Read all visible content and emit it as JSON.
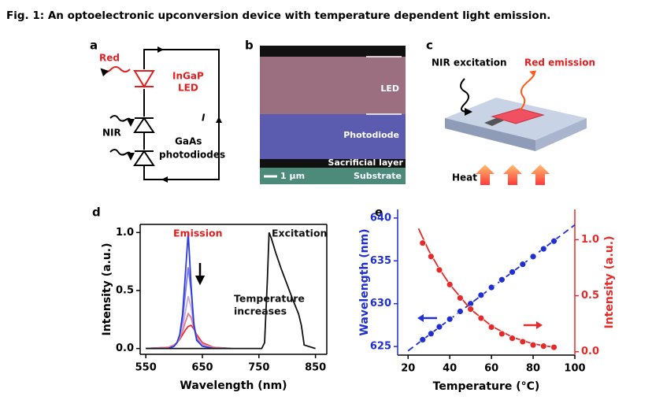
{
  "title": "Fig. 1: An optoelectronic upconversion device with temperature dependent light emission.",
  "panels": {
    "a": {
      "letter": "a",
      "red": "Red",
      "led_material": "InGaP",
      "led": "LED",
      "nir": "NIR",
      "diode_material": "GaAs",
      "diodes": "photodiodes",
      "current": "I"
    },
    "b": {
      "letter": "b",
      "led": "LED",
      "photodiode": "Photodiode",
      "sacrificial": "Sacrificial layer",
      "scale": "1 µm",
      "substrate": "Substrate"
    },
    "c": {
      "letter": "c",
      "nir": "NIR excitation",
      "red": "Red emission",
      "heat": "Heat"
    }
  },
  "chart_data": [
    {
      "type": "line",
      "letter": "d",
      "xlabel": "Wavelength (nm)",
      "ylabel": "Intensity (a.u.)",
      "annotations": [
        "Emission",
        "Excitation",
        "Temperature",
        "increases"
      ],
      "xlim": [
        540,
        870
      ],
      "xticks": [
        550,
        650,
        750,
        850
      ],
      "ylim": [
        -0.05,
        1.07
      ],
      "yticks": [
        {
          "value": 0,
          "label": "0.0"
        },
        {
          "value": 0.5,
          "label": "0.5"
        },
        {
          "value": 1,
          "label": "1.0"
        }
      ],
      "series": [
        {
          "color": "#ee2a2a",
          "x": [
            550,
            590,
            600,
            605,
            610,
            615,
            620,
            625,
            630,
            635,
            640,
            650,
            670,
            700
          ],
          "values": [
            0,
            0.01,
            0.03,
            0.05,
            0.08,
            0.12,
            0.16,
            0.19,
            0.2,
            0.17,
            0.12,
            0.05,
            0.01,
            0
          ]
        },
        {
          "color": "#e87a8a",
          "x": [
            550,
            590,
            600,
            605,
            610,
            615,
            620,
            625,
            630,
            635,
            640,
            650,
            670,
            700
          ],
          "values": [
            0,
            0.01,
            0.03,
            0.05,
            0.09,
            0.15,
            0.23,
            0.3,
            0.27,
            0.18,
            0.1,
            0.04,
            0.01,
            0
          ]
        },
        {
          "color": "#c9a8d8",
          "x": [
            550,
            590,
            600,
            605,
            610,
            615,
            620,
            625,
            630,
            635,
            640,
            650,
            670,
            700
          ],
          "values": [
            0,
            0,
            0.02,
            0.05,
            0.1,
            0.18,
            0.32,
            0.45,
            0.36,
            0.2,
            0.09,
            0.03,
            0,
            0
          ]
        },
        {
          "color": "#7a7ae8",
          "x": [
            550,
            590,
            600,
            605,
            610,
            615,
            620,
            625,
            630,
            635,
            640,
            650,
            670,
            700
          ],
          "values": [
            0,
            0,
            0.02,
            0.05,
            0.12,
            0.25,
            0.48,
            0.7,
            0.5,
            0.22,
            0.08,
            0.02,
            0,
            0
          ]
        },
        {
          "color": "#2b3bdc",
          "x": [
            550,
            590,
            600,
            605,
            610,
            615,
            620,
            625,
            630,
            635,
            640,
            650,
            670,
            700
          ],
          "values": [
            0,
            0,
            0.02,
            0.05,
            0.12,
            0.3,
            0.65,
            1.0,
            0.55,
            0.2,
            0.07,
            0.02,
            0,
            0
          ]
        },
        {
          "color": "#111111",
          "x": [
            550,
            700,
            755,
            760,
            765,
            768,
            772,
            780,
            790,
            800,
            810,
            820,
            825,
            830,
            850
          ],
          "values": [
            0,
            0,
            0,
            0.05,
            0.6,
            1.0,
            0.95,
            0.82,
            0.68,
            0.55,
            0.42,
            0.3,
            0.2,
            0.03,
            0
          ]
        }
      ]
    },
    {
      "type": "scatter",
      "letter": "e",
      "xlabel": "Temperature (°C)",
      "ylabel": "Wavelength (nm)",
      "y2label": "Intensity (a.u.)",
      "xlim": [
        15,
        100
      ],
      "xticks": [
        20,
        40,
        60,
        80,
        100
      ],
      "ylim": [
        624,
        641
      ],
      "yticks": [
        625,
        630,
        635,
        640
      ],
      "y2lim": [
        -0.03,
        1.27
      ],
      "y2ticks": [
        {
          "value": 0,
          "label": "0.0"
        },
        {
          "value": 0.5,
          "label": "0.5"
        },
        {
          "value": 1,
          "label": "1.0"
        }
      ],
      "series": [
        {
          "color": "#1f2fd0",
          "style": "dashed",
          "x": [
            20,
            100
          ],
          "values": [
            624.5,
            639.2
          ]
        },
        {
          "color": "#1f2fd0",
          "marker": "circle",
          "x": [
            27,
            31,
            35,
            40,
            45,
            50,
            55,
            60,
            65,
            70,
            75,
            80,
            85,
            90
          ],
          "values": [
            625.8,
            626.5,
            627.3,
            628.2,
            629.1,
            630.0,
            631.0,
            631.9,
            632.8,
            633.7,
            634.6,
            635.5,
            636.4,
            637.3
          ]
        },
        {
          "color": "#e62a2a",
          "axis": "y2",
          "style": "solid",
          "x": [
            25,
            30,
            35,
            40,
            50,
            60,
            70,
            80,
            90
          ],
          "values": [
            1.1,
            0.9,
            0.74,
            0.6,
            0.38,
            0.23,
            0.13,
            0.07,
            0.04
          ]
        },
        {
          "color": "#e62a2a",
          "axis": "y2",
          "marker": "circle",
          "x": [
            27,
            31,
            35,
            40,
            45,
            50,
            55,
            60,
            65,
            70,
            75,
            80,
            85,
            90
          ],
          "values": [
            0.97,
            0.85,
            0.73,
            0.6,
            0.48,
            0.38,
            0.3,
            0.22,
            0.16,
            0.12,
            0.09,
            0.06,
            0.05,
            0.04
          ]
        }
      ]
    }
  ]
}
